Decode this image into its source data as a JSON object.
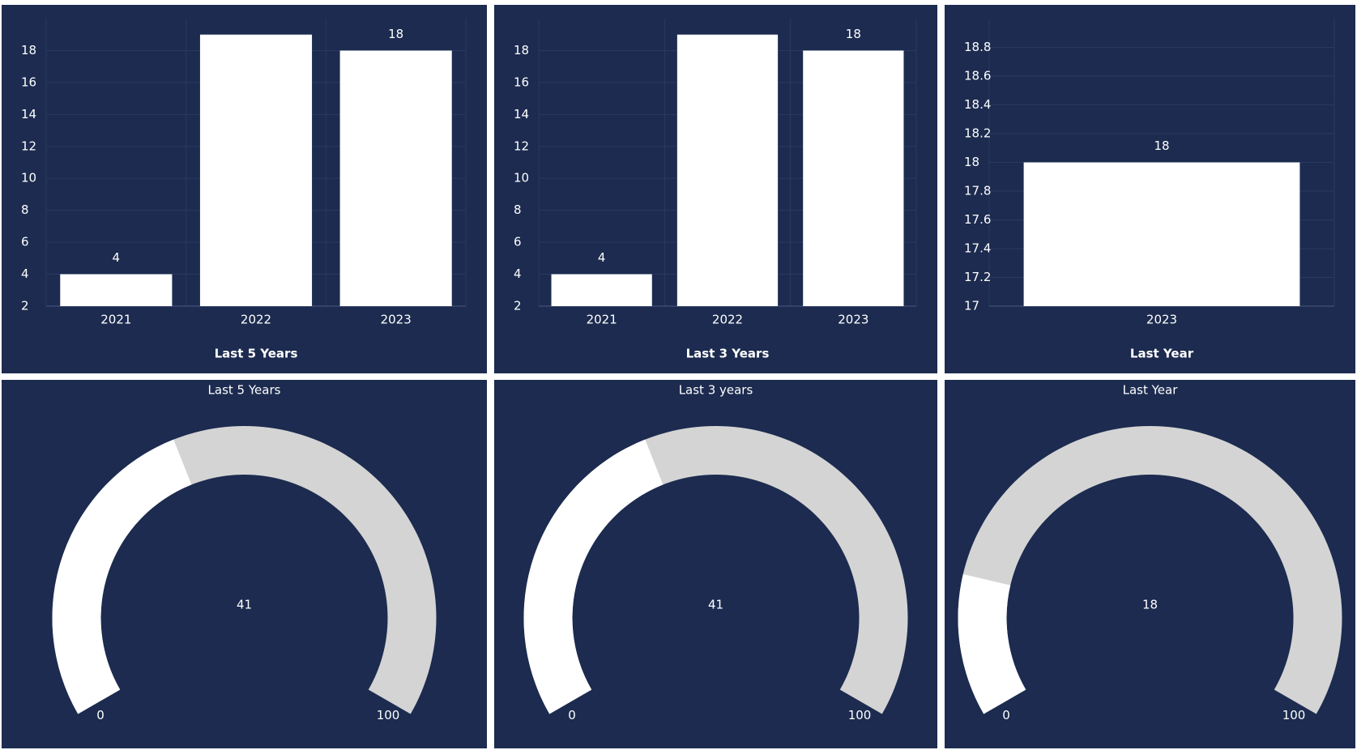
{
  "chart_data": [
    {
      "type": "bar",
      "title": "Last 5 Years",
      "categories": [
        "2021",
        "2022",
        "2023"
      ],
      "values": [
        4,
        19,
        18
      ],
      "value_labels": [
        "4",
        null,
        "18"
      ],
      "color": "#ffffff",
      "ylim": [
        2,
        20
      ],
      "yticks": [
        2,
        4,
        6,
        8,
        10,
        12,
        14,
        16,
        18
      ],
      "grid": true
    },
    {
      "type": "bar",
      "title": "Last 3 Years",
      "categories": [
        "2021",
        "2022",
        "2023"
      ],
      "values": [
        4,
        19,
        18
      ],
      "value_labels": [
        "4",
        null,
        "18"
      ],
      "color": "#ffffff",
      "ylim": [
        2,
        20
      ],
      "yticks": [
        2,
        4,
        6,
        8,
        10,
        12,
        14,
        16,
        18
      ],
      "grid": true
    },
    {
      "type": "bar",
      "title": "Last Year",
      "categories": [
        "2023"
      ],
      "values": [
        18
      ],
      "value_labels": [
        "18"
      ],
      "color": "#ffffff",
      "ylim": [
        17,
        19
      ],
      "yticks": [
        17,
        17.2,
        17.4,
        17.6,
        17.8,
        18,
        18.2,
        18.4,
        18.6,
        18.8
      ],
      "grid": true
    },
    {
      "type": "gauge",
      "title": "Last 5 Years",
      "value": 41,
      "min": 0,
      "max": 100,
      "color": "#ffffff",
      "track_color": "#d4d4d4"
    },
    {
      "type": "gauge",
      "title": "Last 3 years",
      "value": 41,
      "min": 0,
      "max": 100,
      "color": "#ffffff",
      "track_color": "#d4d4d4"
    },
    {
      "type": "gauge",
      "title": "Last Year",
      "value": 18,
      "min": 0,
      "max": 100,
      "color": "#ffffff",
      "track_color": "#d4d4d4"
    }
  ]
}
